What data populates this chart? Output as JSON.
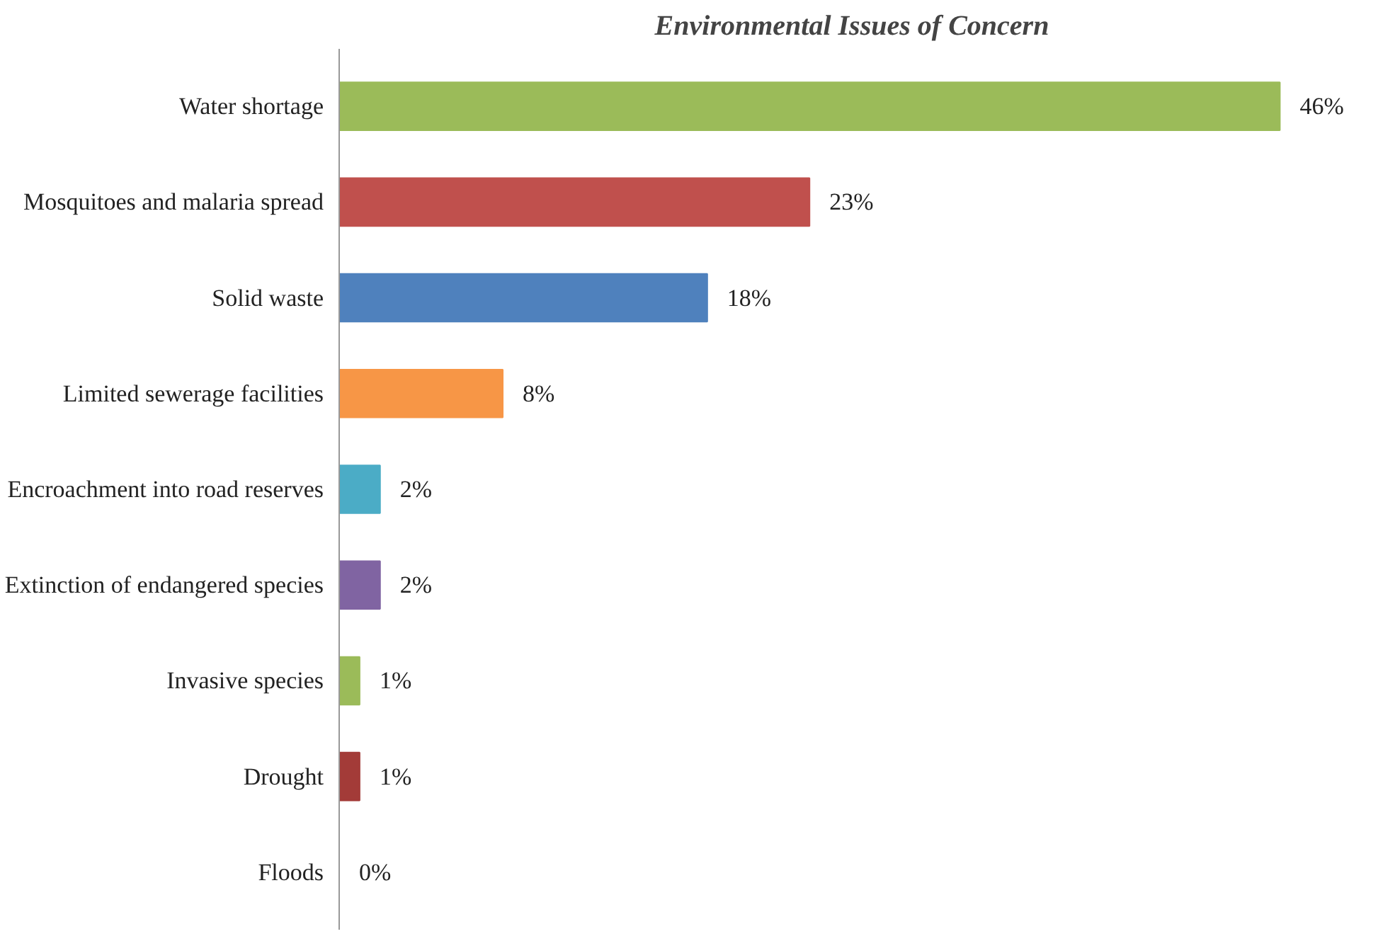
{
  "chart_data": {
    "type": "bar",
    "orientation": "horizontal",
    "title": "Environmental Issues of Concern",
    "categories": [
      "Water shortage",
      "Mosquitoes and malaria spread",
      "Solid waste",
      "Limited sewerage facilities",
      "Encroachment into road reserves",
      "Extinction of endangered species",
      "Invasive species",
      "Drought",
      "Floods"
    ],
    "values": [
      46,
      23,
      18,
      8,
      2,
      2,
      1,
      1,
      0
    ],
    "value_labels": [
      "46%",
      "23%",
      "18%",
      "8%",
      "2%",
      "2%",
      "1%",
      "1%",
      "0%"
    ],
    "colors": [
      "#9bbb59",
      "#c0504d",
      "#4f81bd",
      "#f79646",
      "#4bacc6",
      "#8064a2",
      "#9bbb59",
      "#a33b38",
      "#3b6a9e"
    ],
    "grid": false
  }
}
